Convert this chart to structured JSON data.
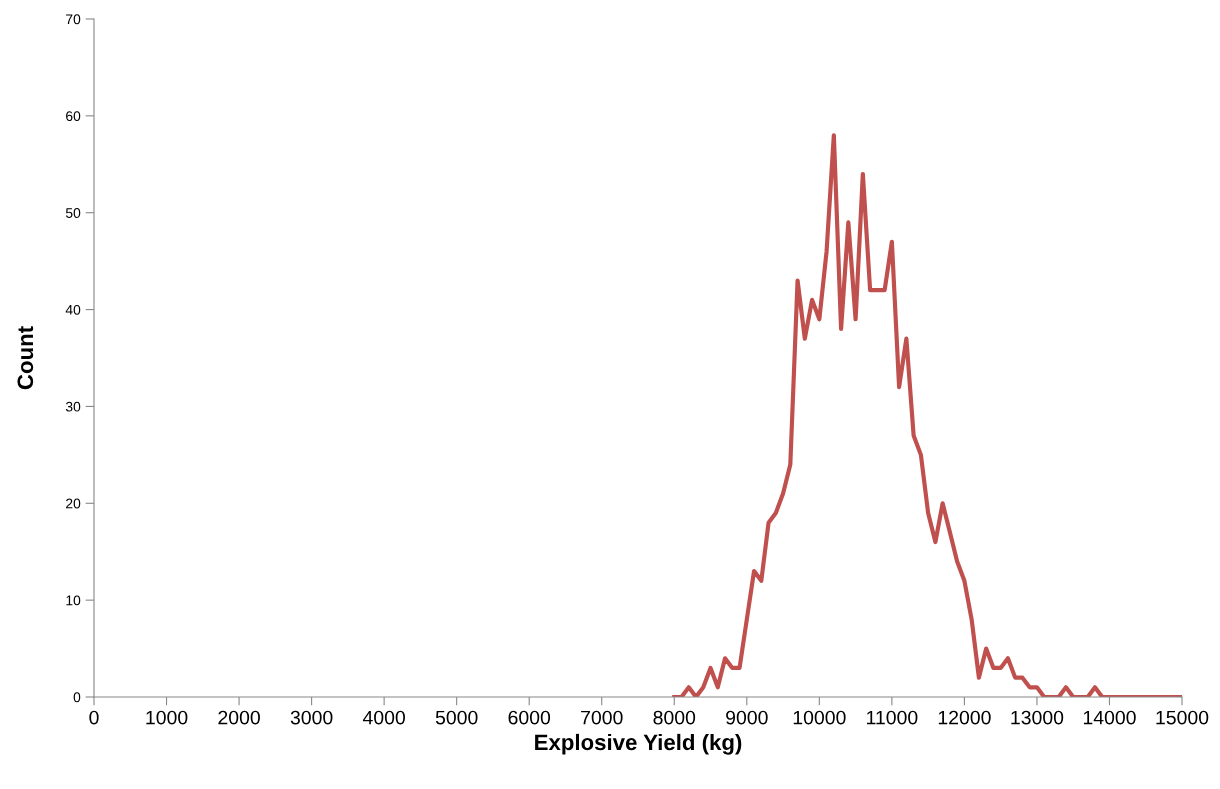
{
  "chart_data": {
    "type": "line",
    "xlabel": "Explosive Yield (kg)",
    "ylabel": "Count",
    "x": [
      8000,
      8100,
      8200,
      8300,
      8400,
      8500,
      8600,
      8700,
      8800,
      8900,
      9000,
      9100,
      9200,
      9300,
      9400,
      9500,
      9600,
      9700,
      9800,
      9900,
      10000,
      10100,
      10200,
      10300,
      10400,
      10500,
      10600,
      10700,
      10800,
      10900,
      11000,
      11100,
      11200,
      11300,
      11400,
      11500,
      11600,
      11700,
      11800,
      11900,
      12000,
      12100,
      12200,
      12300,
      12400,
      12500,
      12600,
      12700,
      12800,
      12900,
      13000,
      13100,
      13200,
      13300,
      13400,
      13500,
      13600,
      13700,
      13800,
      13900,
      14000,
      14100,
      14200,
      14300,
      14400,
      14500,
      14600,
      14700,
      14800,
      14900,
      15000
    ],
    "series": [
      {
        "color": "#c0504d",
        "values": [
          0,
          0,
          1,
          0,
          1,
          3,
          1,
          4,
          3,
          3,
          8,
          13,
          12,
          18,
          19,
          21,
          24,
          43,
          37,
          41,
          39,
          46,
          58,
          38,
          49,
          39,
          54,
          42,
          42,
          42,
          47,
          32,
          37,
          27,
          25,
          19,
          16,
          20,
          17,
          14,
          12,
          8,
          2,
          5,
          3,
          3,
          4,
          2,
          2,
          1,
          1,
          0,
          0,
          0,
          1,
          0,
          0,
          0,
          1,
          0,
          0,
          0,
          0,
          0,
          0,
          0,
          0,
          0,
          0,
          0,
          0
        ]
      }
    ],
    "xlim": [
      0,
      15000
    ],
    "xticks": [
      0,
      1000,
      2000,
      3000,
      4000,
      5000,
      6000,
      7000,
      8000,
      9000,
      10000,
      11000,
      12000,
      13000,
      14000,
      15000
    ],
    "ylim": [
      0,
      70
    ],
    "yticks": [
      0,
      10,
      20,
      30,
      40,
      50,
      60,
      70
    ],
    "grid": false,
    "marker": "none",
    "line_style": "solid"
  }
}
